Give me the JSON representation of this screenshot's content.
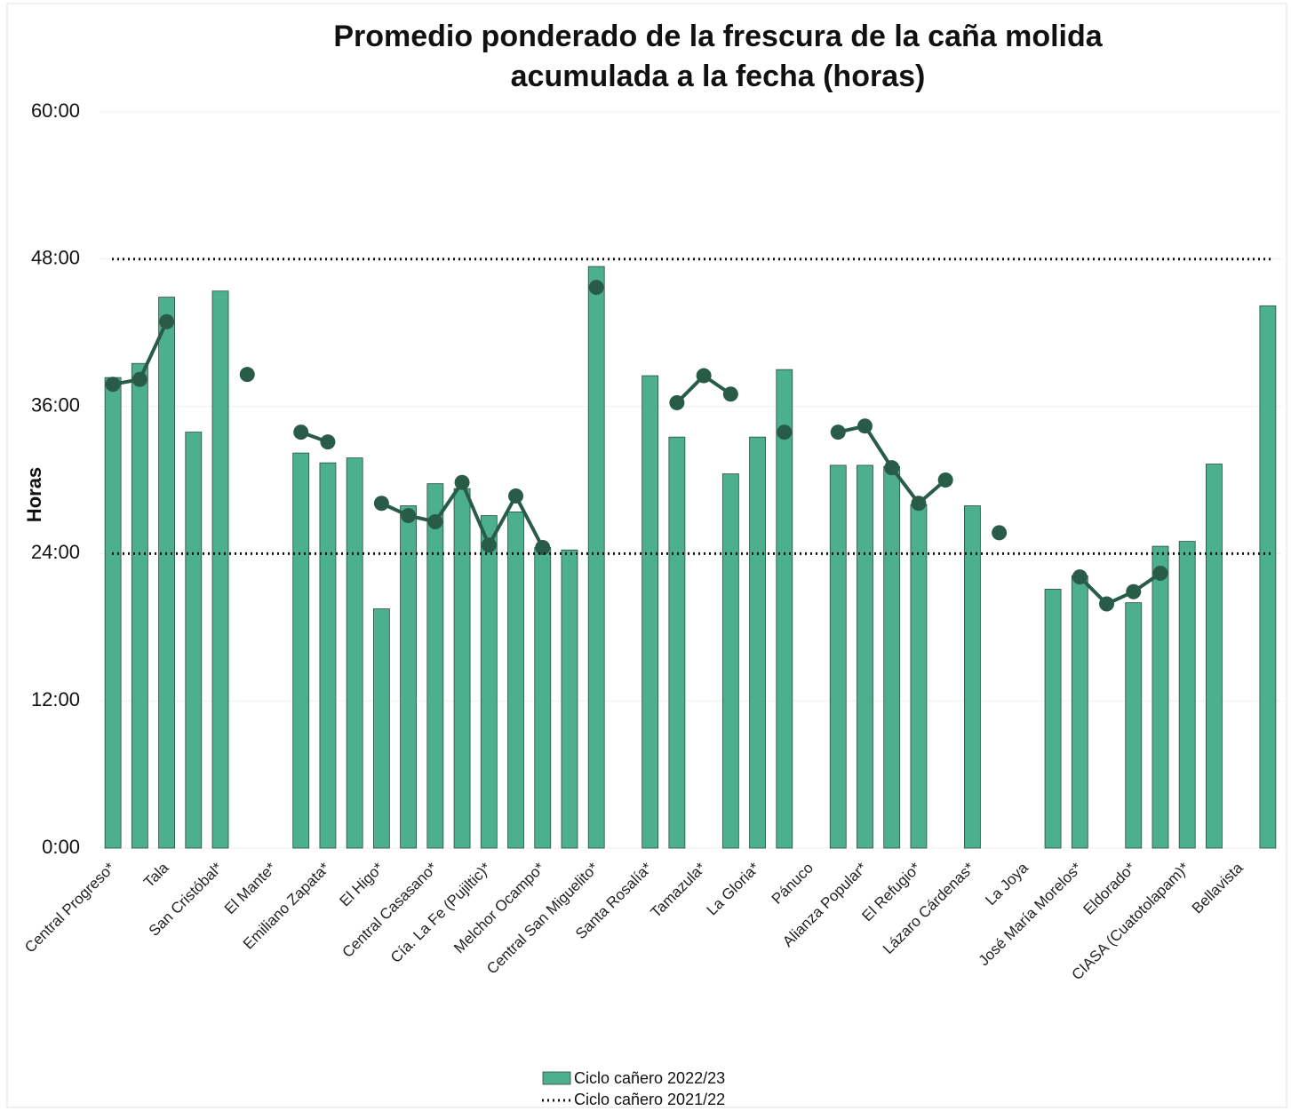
{
  "chart_data": {
    "type": "bar",
    "title": [
      "Promedio ponderado de la frescura de la caña molida",
      "acumulada a la fecha (horas)"
    ],
    "y_label": "Horas",
    "categories": [
      "Central Progreso*",
      null,
      "Tala",
      null,
      "San Cristóbal*",
      null,
      "El Mante*",
      null,
      "Emiliano Zapata*",
      null,
      "El Higo*",
      null,
      "Central Casasano*",
      null,
      "Cía. La Fe (Pujiltic)*",
      null,
      "Melchor Ocampo*",
      null,
      "Central San Miguelito*",
      null,
      "Santa Rosalía*",
      null,
      "Tamazula*",
      null,
      "La Gloria*",
      null,
      "Pánuco",
      null,
      "Alianza Popular*",
      null,
      "El Refugio*",
      null,
      "Lázaro Cárdenas*",
      null,
      "La Joya",
      null,
      "José María Morelos*",
      null,
      "Eldorado*",
      null,
      "CIASA (Cuatotolapam)*",
      null,
      "Bellavista",
      null
    ],
    "series": [
      {
        "name": "Ciclo cañero 2022/23",
        "type": "bar",
        "color": "#4caf8e",
        "values": [
          38.35,
          39.5,
          44.9,
          33.9,
          45.4,
          null,
          null,
          32.2,
          31.4,
          31.8,
          19.5,
          27.9,
          29.7,
          29.3,
          27.1,
          27.4,
          24.5,
          24.3,
          47.4,
          null,
          38.5,
          33.5,
          null,
          30.5,
          33.5,
          39.0,
          null,
          31.2,
          31.2,
          31.1,
          28.0,
          null,
          27.9,
          null,
          null,
          21.1,
          22.2,
          null,
          20.0,
          24.6,
          25.0,
          31.3,
          null,
          44.2
        ]
      },
      {
        "type": "line",
        "color": "#285c48",
        "values": [
          37.8,
          38.2,
          42.9,
          null,
          null,
          38.6,
          null,
          33.9,
          33.1,
          null,
          28.1,
          27.1,
          26.6,
          29.8,
          24.7,
          28.7,
          24.5,
          null,
          45.7,
          null,
          null,
          36.3,
          38.5,
          37.0,
          null,
          33.9,
          null,
          33.9,
          34.4,
          31.0,
          28.1,
          30.0,
          null,
          25.7,
          null,
          null,
          22.1,
          19.9,
          20.9,
          22.4,
          null,
          null,
          null,
          null
        ]
      }
    ],
    "reference_lines": {
      "name": "Ciclo cañero 2021/22",
      "color": "#111",
      "values": [
        48,
        24
      ]
    },
    "ylim": [
      0,
      60
    ],
    "yticks": [
      {
        "value": 0,
        "label": "0:00"
      },
      {
        "value": 12,
        "label": "12:00"
      },
      {
        "value": 24,
        "label": "24:00"
      },
      {
        "value": 36,
        "label": "36:00"
      },
      {
        "value": 48,
        "label": "48:00"
      },
      {
        "value": 60,
        "label": "60:00"
      }
    ],
    "grid": true
  }
}
